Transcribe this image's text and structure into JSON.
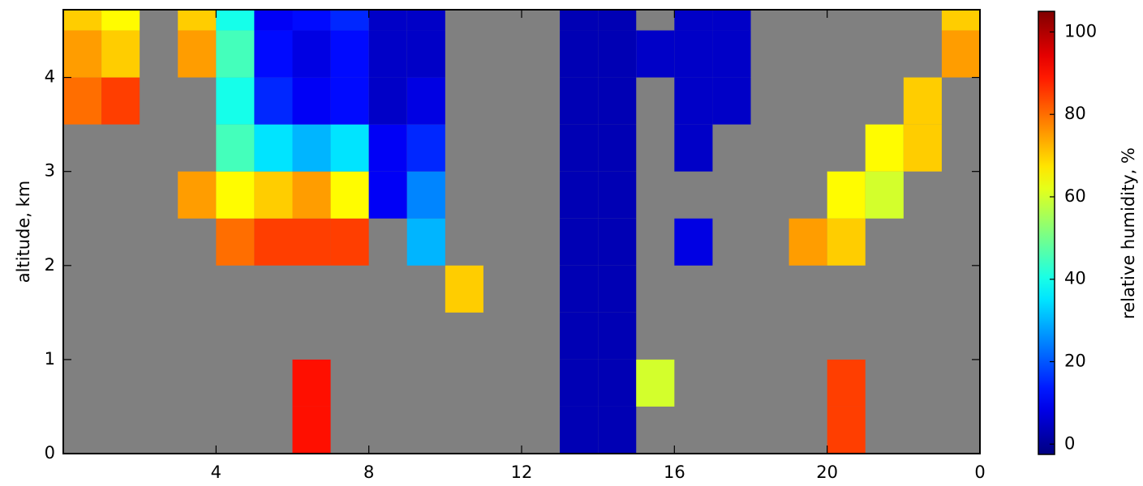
{
  "chart_data": {
    "type": "heatmap",
    "y_label": "altitude, km",
    "colorbar_label": "relative humidity, %",
    "colormap": "jet",
    "background": "#808080",
    "xbins": [
      0,
      1,
      2,
      3,
      4,
      5,
      6,
      7,
      8,
      9,
      10,
      11,
      12,
      13,
      14,
      15,
      16,
      17,
      18,
      19,
      20,
      21,
      22,
      23,
      24
    ],
    "ybins": [
      0,
      0.5,
      1,
      1.5,
      2,
      2.5,
      3,
      3.5,
      4,
      4.5,
      5
    ],
    "z": [
      [
        null,
        null,
        null,
        null,
        null,
        null,
        90,
        null,
        null,
        null,
        null,
        null,
        null,
        3,
        3,
        null,
        null,
        null,
        null,
        null,
        85,
        null,
        null,
        null
      ],
      [
        null,
        null,
        null,
        null,
        null,
        null,
        90,
        null,
        null,
        null,
        null,
        null,
        null,
        3,
        3,
        60,
        null,
        null,
        null,
        null,
        85,
        null,
        null,
        null
      ],
      [
        null,
        null,
        null,
        null,
        null,
        null,
        null,
        null,
        null,
        null,
        null,
        null,
        null,
        3,
        3,
        null,
        null,
        null,
        null,
        null,
        null,
        null,
        null,
        null
      ],
      [
        null,
        null,
        null,
        null,
        null,
        null,
        null,
        null,
        null,
        null,
        70,
        null,
        null,
        3,
        3,
        null,
        null,
        null,
        null,
        null,
        null,
        null,
        null,
        null
      ],
      [
        null,
        null,
        null,
        null,
        80,
        85,
        85,
        85,
        null,
        30,
        null,
        null,
        null,
        3,
        3,
        null,
        8,
        null,
        null,
        75,
        70,
        null,
        null,
        null
      ],
      [
        null,
        null,
        null,
        75,
        65,
        70,
        75,
        65,
        10,
        25,
        null,
        null,
        null,
        3,
        3,
        null,
        null,
        null,
        null,
        null,
        65,
        60,
        null,
        null
      ],
      [
        null,
        null,
        null,
        null,
        45,
        35,
        30,
        35,
        10,
        15,
        null,
        null,
        null,
        3,
        3,
        null,
        5,
        null,
        null,
        null,
        null,
        65,
        70,
        null
      ],
      [
        80,
        85,
        null,
        null,
        40,
        15,
        10,
        12,
        5,
        8,
        null,
        null,
        null,
        3,
        3,
        null,
        5,
        5,
        null,
        null,
        null,
        null,
        70,
        null
      ],
      [
        75,
        70,
        null,
        75,
        45,
        12,
        8,
        12,
        5,
        5,
        null,
        null,
        null,
        3,
        3,
        5,
        5,
        5,
        null,
        null,
        null,
        null,
        null,
        75
      ],
      [
        70,
        65,
        null,
        70,
        40,
        10,
        12,
        15,
        5,
        5,
        null,
        null,
        null,
        3,
        3,
        null,
        5,
        5,
        null,
        null,
        null,
        null,
        null,
        70
      ]
    ],
    "xlim": [
      0,
      24
    ],
    "xticks": [
      4,
      8,
      12,
      16,
      20,
      {
        "value": 24,
        "label": "0"
      }
    ],
    "ylim": [
      0,
      4.72
    ],
    "yticks": [
      0,
      1,
      2,
      3,
      4
    ],
    "clim": [
      -2.5,
      105
    ],
    "cticks": [
      0,
      20,
      40,
      60,
      80,
      100
    ]
  }
}
